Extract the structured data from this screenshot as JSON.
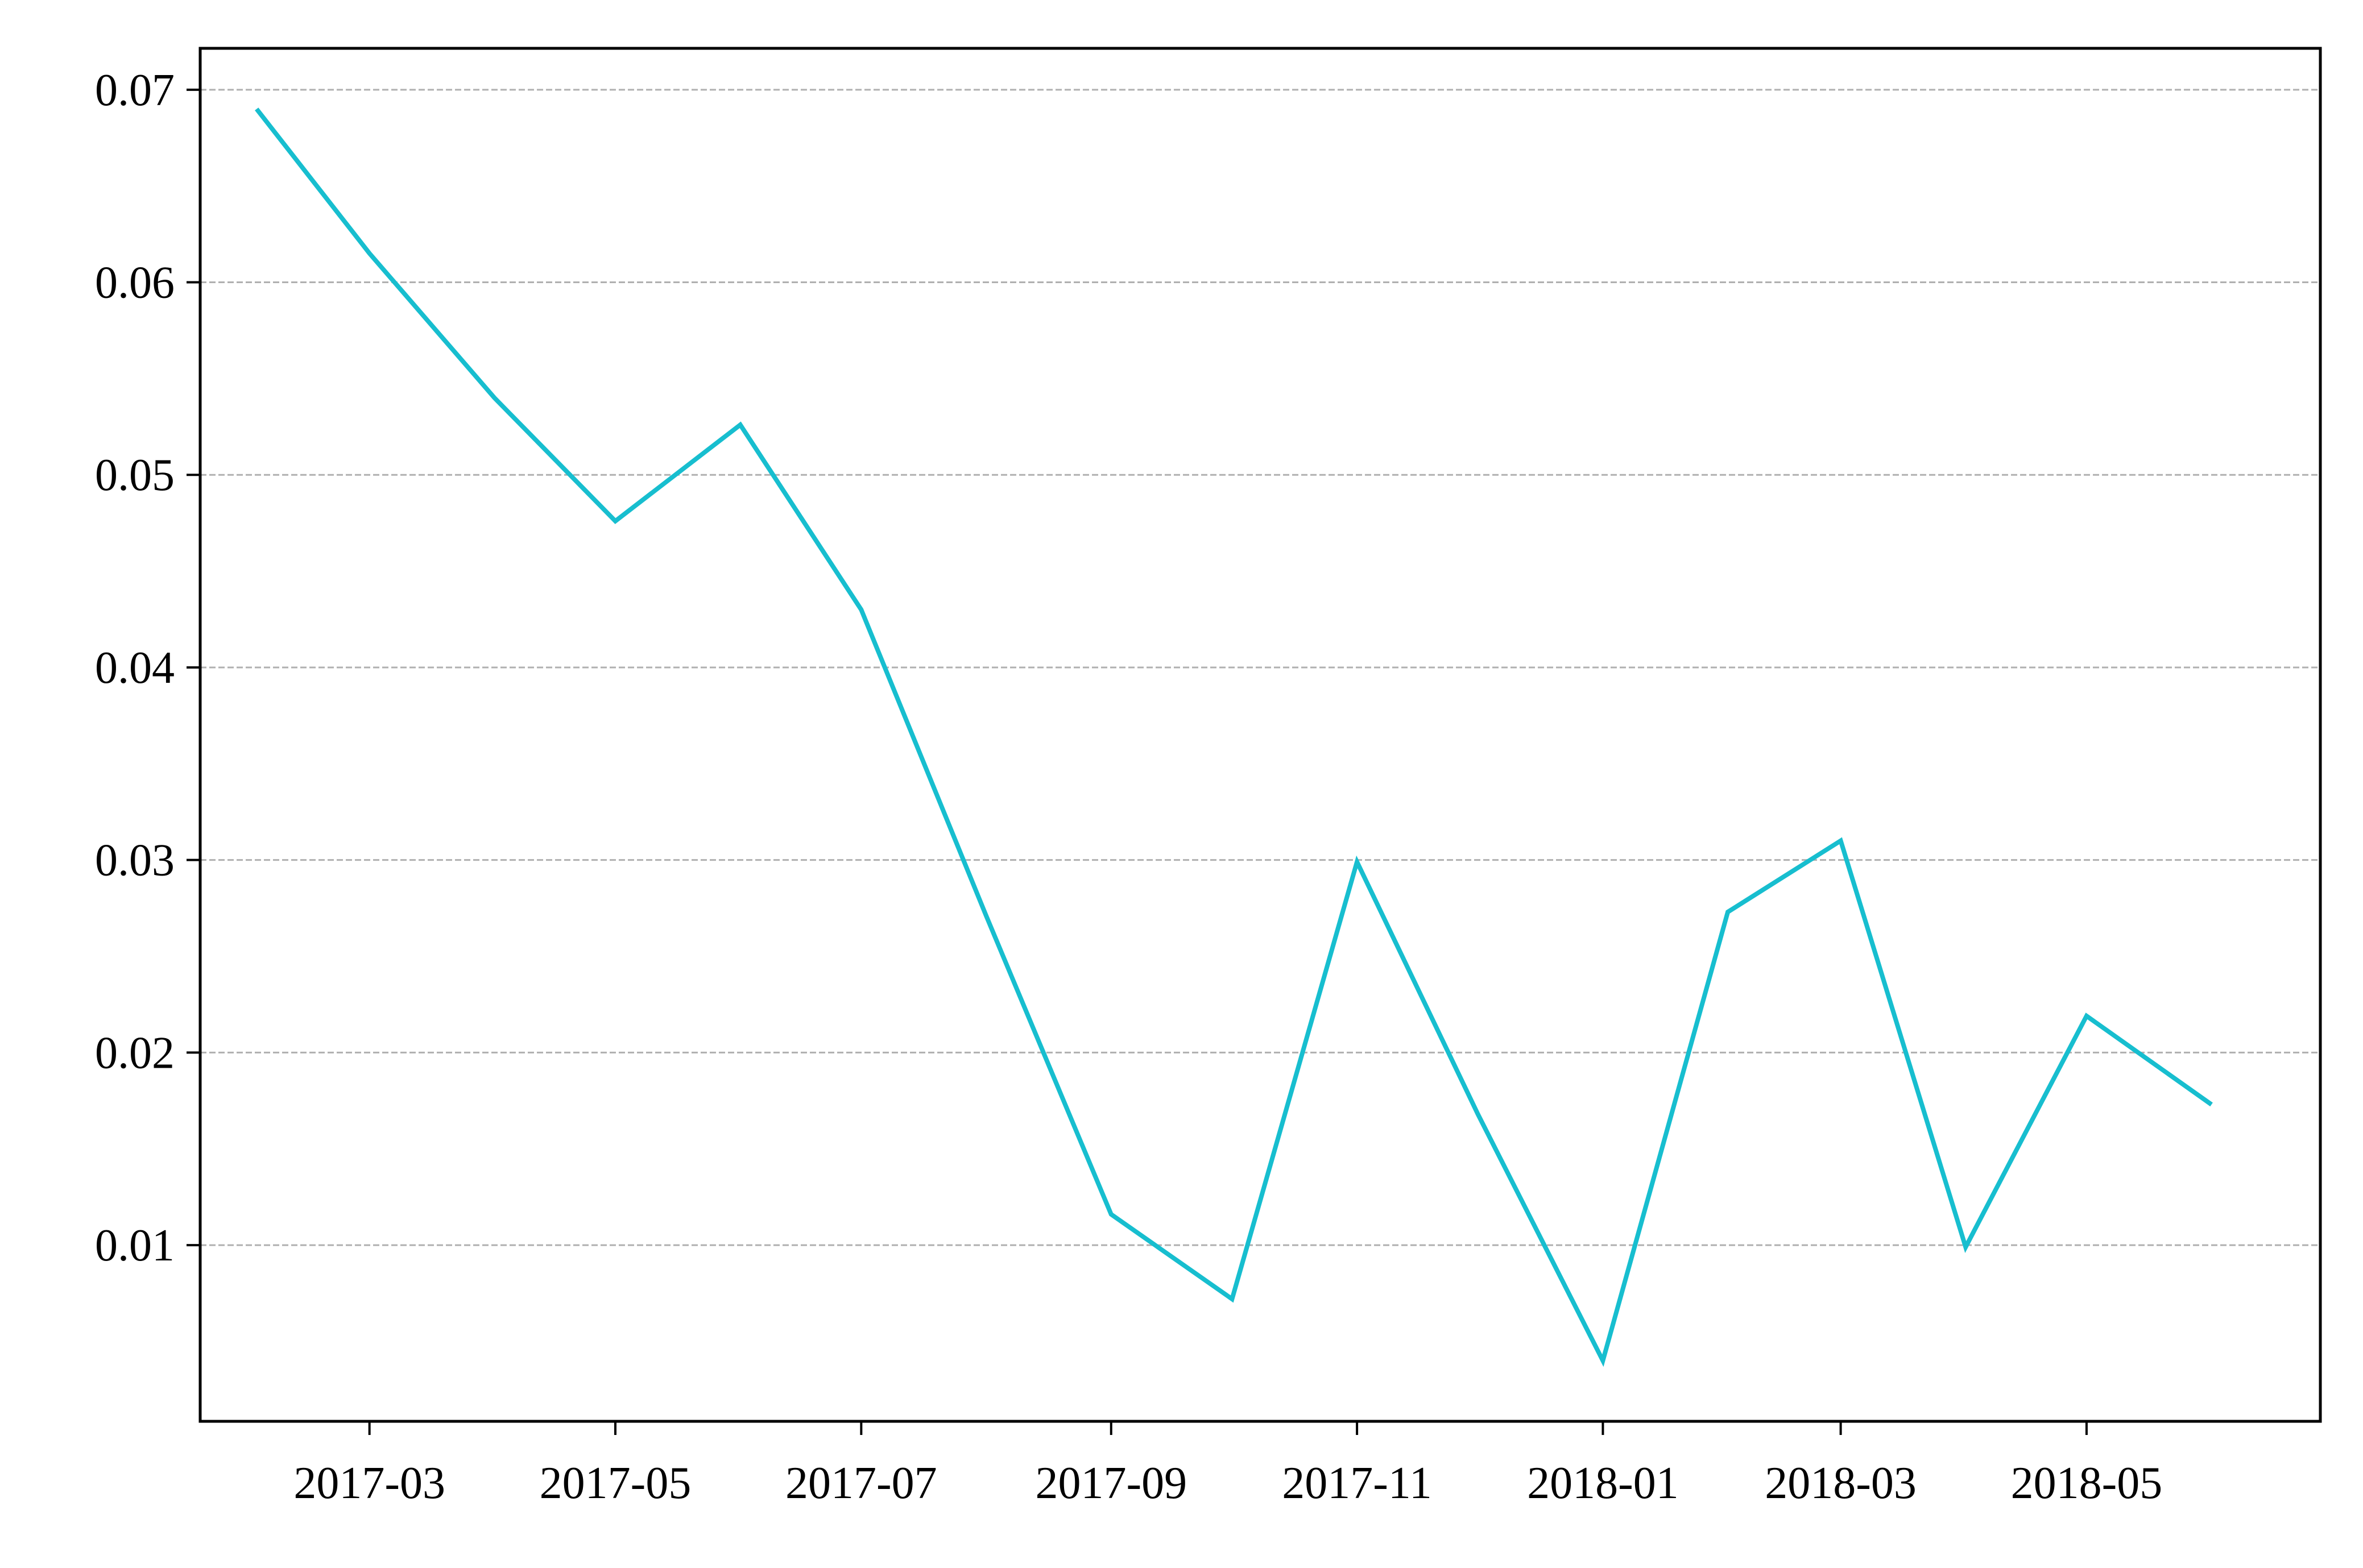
{
  "chart_data": {
    "type": "line",
    "title": "",
    "xlabel": "",
    "ylabel": "",
    "x_axis_type": "date",
    "x": [
      "2017-02-01",
      "2017-03-01",
      "2017-04-01",
      "2017-05-01",
      "2017-06-01",
      "2017-07-01",
      "2017-08-01",
      "2017-09-01",
      "2017-10-01",
      "2017-11-01",
      "2017-12-01",
      "2018-01-01",
      "2018-02-01",
      "2018-03-01",
      "2018-04-01",
      "2018-05-01",
      "2018-06-01"
    ],
    "series": [
      {
        "values": [
          0.069,
          0.0615,
          0.054,
          0.0476,
          0.0526,
          0.043,
          0.0271,
          0.0116,
          0.0072,
          0.0299,
          0.0168,
          0.004,
          0.0273,
          0.031,
          0.0099,
          0.0219,
          0.0173
        ],
        "color": "#17becf"
      }
    ],
    "xlim": [
      "2017-01-18",
      "2018-06-28"
    ],
    "ylim": [
      0.00085,
      0.07215
    ],
    "x_ticks": [
      "2017-03",
      "2017-05",
      "2017-07",
      "2017-09",
      "2017-11",
      "2018-01",
      "2018-03",
      "2018-05"
    ],
    "y_ticks": [
      "0.01",
      "0.02",
      "0.03",
      "0.04",
      "0.05",
      "0.06",
      "0.07"
    ],
    "grid": "y-dashed",
    "legend": "none"
  }
}
